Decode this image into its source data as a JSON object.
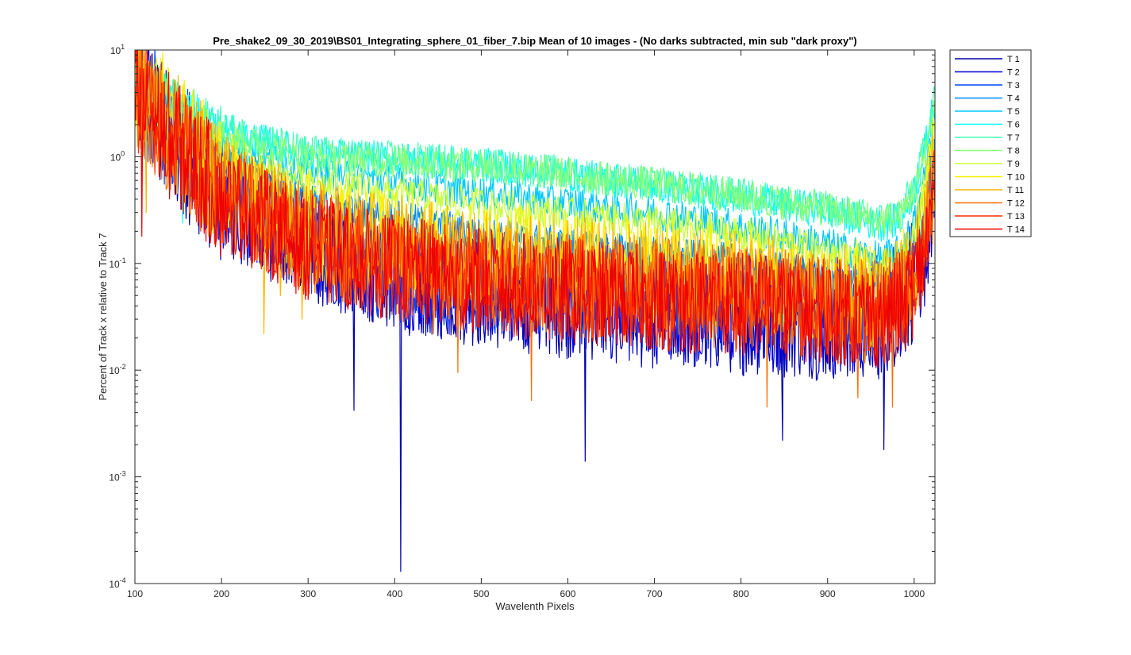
{
  "chart_data": {
    "type": "line",
    "title": "Pre_shake2_09_30_2019\\BS01_Integrating_sphere_01_fiber_7.bip  Mean of 10 images - (No darks subtracted, min sub \"dark proxy\")",
    "xlabel": "Wavelenth Pixels",
    "ylabel": "Percent of Track x relative to Track 7",
    "xlim": [
      100,
      1024
    ],
    "ylim": [
      0.0001,
      10
    ],
    "yscale": "log",
    "xticks": [
      100,
      200,
      300,
      400,
      500,
      600,
      700,
      800,
      900,
      1000
    ],
    "yticks": [
      {
        "value": 0.0001,
        "base": "10",
        "exp": "-4"
      },
      {
        "value": 0.001,
        "base": "10",
        "exp": "-3"
      },
      {
        "value": 0.01,
        "base": "10",
        "exp": "-2"
      },
      {
        "value": 0.1,
        "base": "10",
        "exp": "-1"
      },
      {
        "value": 1,
        "base": "10",
        "exp": "0"
      },
      {
        "value": 10,
        "base": "10",
        "exp": "1"
      }
    ],
    "grid": false,
    "legend_position": "outside-right",
    "series": [
      {
        "name": "T 1",
        "color": "#0000AA",
        "points": [
          [
            100,
            4.5
          ],
          [
            150,
            1.2
          ],
          [
            200,
            0.4
          ],
          [
            300,
            0.13
          ],
          [
            400,
            0.07
          ],
          [
            500,
            0.05
          ],
          [
            600,
            0.04
          ],
          [
            700,
            0.032
          ],
          [
            800,
            0.028
          ],
          [
            900,
            0.025
          ],
          [
            960,
            0.025
          ],
          [
            990,
            0.04
          ],
          [
            1010,
            0.09
          ],
          [
            1024,
            0.4
          ]
        ],
        "spikes": [
          [
            353,
            0.0042
          ],
          [
            407,
            0.00013
          ],
          [
            620,
            0.0014
          ],
          [
            848,
            0.0022
          ],
          [
            965,
            0.0018
          ]
        ]
      },
      {
        "name": "T 2",
        "color": "#0000DD",
        "points": [
          [
            100,
            4.5
          ],
          [
            150,
            1.3
          ],
          [
            200,
            0.42
          ],
          [
            300,
            0.14
          ],
          [
            400,
            0.075
          ],
          [
            500,
            0.055
          ],
          [
            600,
            0.045
          ],
          [
            700,
            0.036
          ],
          [
            800,
            0.031
          ],
          [
            900,
            0.028
          ],
          [
            960,
            0.028
          ],
          [
            990,
            0.045
          ],
          [
            1010,
            0.1
          ],
          [
            1024,
            0.45
          ]
        ],
        "spikes": []
      },
      {
        "name": "T 3",
        "color": "#0047FF",
        "points": [
          [
            100,
            5
          ],
          [
            150,
            1.4
          ],
          [
            200,
            0.5
          ],
          [
            300,
            0.16
          ],
          [
            400,
            0.09
          ],
          [
            500,
            0.07
          ],
          [
            600,
            0.06
          ],
          [
            700,
            0.05
          ],
          [
            800,
            0.045
          ],
          [
            900,
            0.04
          ],
          [
            960,
            0.04
          ],
          [
            990,
            0.06
          ],
          [
            1010,
            0.15
          ],
          [
            1024,
            0.8
          ]
        ],
        "spikes": []
      },
      {
        "name": "T 4",
        "color": "#008AFF",
        "points": [
          [
            100,
            5
          ],
          [
            150,
            2.4
          ],
          [
            200,
            1.0
          ],
          [
            300,
            0.38
          ],
          [
            400,
            0.27
          ],
          [
            500,
            0.19
          ],
          [
            600,
            0.15
          ],
          [
            700,
            0.125
          ],
          [
            800,
            0.105
          ],
          [
            900,
            0.075
          ],
          [
            960,
            0.058
          ],
          [
            985,
            0.07
          ],
          [
            1005,
            0.15
          ],
          [
            1024,
            1.3
          ]
        ],
        "spikes": []
      },
      {
        "name": "T 5",
        "color": "#00C8FF",
        "points": [
          [
            100,
            6
          ],
          [
            150,
            2.8
          ],
          [
            200,
            1.3
          ],
          [
            300,
            0.75
          ],
          [
            400,
            0.58
          ],
          [
            500,
            0.46
          ],
          [
            600,
            0.37
          ],
          [
            700,
            0.3
          ],
          [
            800,
            0.22
          ],
          [
            900,
            0.15
          ],
          [
            960,
            0.11
          ],
          [
            985,
            0.13
          ],
          [
            1005,
            0.3
          ],
          [
            1024,
            2.5
          ]
        ],
        "spikes": []
      },
      {
        "name": "T 6",
        "color": "#00FFFF",
        "points": [
          [
            100,
            6.5
          ],
          [
            150,
            3.2
          ],
          [
            200,
            1.8
          ],
          [
            300,
            1.05
          ],
          [
            400,
            0.95
          ],
          [
            500,
            0.84
          ],
          [
            600,
            0.68
          ],
          [
            700,
            0.54
          ],
          [
            800,
            0.42
          ],
          [
            900,
            0.31
          ],
          [
            960,
            0.23
          ],
          [
            985,
            0.26
          ],
          [
            1005,
            0.6
          ],
          [
            1024,
            3.5
          ]
        ],
        "spikes": [
          [
            155,
            0.24
          ]
        ]
      },
      {
        "name": "T 7",
        "color": "#45FFB8",
        "points": [
          [
            100,
            7
          ],
          [
            150,
            3.4
          ],
          [
            200,
            1.9
          ],
          [
            300,
            1.1
          ],
          [
            400,
            0.97
          ],
          [
            500,
            0.86
          ],
          [
            600,
            0.7
          ],
          [
            700,
            0.56
          ],
          [
            800,
            0.44
          ],
          [
            900,
            0.33
          ],
          [
            960,
            0.26
          ],
          [
            985,
            0.3
          ],
          [
            1005,
            0.7
          ],
          [
            1024,
            4.2
          ]
        ],
        "spikes": []
      },
      {
        "name": "T 8",
        "color": "#8AFF75",
        "points": [
          [
            100,
            6.5
          ],
          [
            150,
            3.0
          ],
          [
            200,
            1.6
          ],
          [
            300,
            0.95
          ],
          [
            400,
            0.9
          ],
          [
            500,
            0.82
          ],
          [
            600,
            0.68
          ],
          [
            700,
            0.55
          ],
          [
            800,
            0.43
          ],
          [
            900,
            0.32
          ],
          [
            960,
            0.25
          ],
          [
            985,
            0.28
          ],
          [
            1005,
            0.6
          ],
          [
            1024,
            3.0
          ]
        ],
        "spikes": []
      },
      {
        "name": "T 9",
        "color": "#C8FF37",
        "points": [
          [
            100,
            5.5
          ],
          [
            150,
            2.2
          ],
          [
            200,
            0.95
          ],
          [
            300,
            0.55
          ],
          [
            400,
            0.45
          ],
          [
            500,
            0.36
          ],
          [
            600,
            0.29
          ],
          [
            700,
            0.24
          ],
          [
            800,
            0.19
          ],
          [
            900,
            0.13
          ],
          [
            960,
            0.09
          ],
          [
            985,
            0.11
          ],
          [
            1005,
            0.25
          ],
          [
            1024,
            2.0
          ]
        ],
        "spikes": []
      },
      {
        "name": "T 10",
        "color": "#FFEF00",
        "points": [
          [
            100,
            5
          ],
          [
            150,
            1.6
          ],
          [
            200,
            0.6
          ],
          [
            300,
            0.22
          ],
          [
            400,
            0.15
          ],
          [
            500,
            0.12
          ],
          [
            600,
            0.1
          ],
          [
            700,
            0.085
          ],
          [
            800,
            0.075
          ],
          [
            900,
            0.06
          ],
          [
            960,
            0.05
          ],
          [
            990,
            0.07
          ],
          [
            1010,
            0.2
          ],
          [
            1024,
            1.0
          ]
        ],
        "spikes": []
      },
      {
        "name": "T 11",
        "color": "#FFB400",
        "points": [
          [
            100,
            5
          ],
          [
            150,
            1.5
          ],
          [
            200,
            0.55
          ],
          [
            300,
            0.2
          ],
          [
            400,
            0.14
          ],
          [
            500,
            0.11
          ],
          [
            600,
            0.09
          ],
          [
            700,
            0.075
          ],
          [
            800,
            0.065
          ],
          [
            900,
            0.05
          ],
          [
            960,
            0.045
          ],
          [
            990,
            0.06
          ],
          [
            1010,
            0.15
          ],
          [
            1024,
            0.8
          ]
        ],
        "spikes": [
          [
            113,
            0.3
          ],
          [
            185,
            0.18
          ],
          [
            235,
            0.09
          ],
          [
            249,
            0.022
          ],
          [
            268,
            0.05
          ],
          [
            293,
            0.03
          ]
        ]
      },
      {
        "name": "T 12",
        "color": "#FF7000",
        "points": [
          [
            100,
            4.5
          ],
          [
            150,
            1.4
          ],
          [
            200,
            0.5
          ],
          [
            300,
            0.17
          ],
          [
            400,
            0.1
          ],
          [
            500,
            0.08
          ],
          [
            600,
            0.065
          ],
          [
            700,
            0.055
          ],
          [
            800,
            0.048
          ],
          [
            900,
            0.04
          ],
          [
            960,
            0.035
          ],
          [
            990,
            0.05
          ],
          [
            1010,
            0.12
          ],
          [
            1024,
            0.6
          ]
        ],
        "spikes": [
          [
            445,
            0.022
          ],
          [
            473,
            0.0095
          ],
          [
            558,
            0.0052
          ],
          [
            830,
            0.0045
          ],
          [
            935,
            0.0055
          ],
          [
            975,
            0.0045
          ]
        ]
      },
      {
        "name": "T 13",
        "color": "#FF2D00",
        "points": [
          [
            100,
            4.2
          ],
          [
            150,
            1.3
          ],
          [
            200,
            0.45
          ],
          [
            300,
            0.15
          ],
          [
            400,
            0.09
          ],
          [
            500,
            0.07
          ],
          [
            600,
            0.055
          ],
          [
            700,
            0.047
          ],
          [
            800,
            0.042
          ],
          [
            900,
            0.037
          ],
          [
            960,
            0.033
          ],
          [
            990,
            0.045
          ],
          [
            1010,
            0.1
          ],
          [
            1024,
            0.5
          ]
        ],
        "spikes": []
      },
      {
        "name": "T 14",
        "color": "#EE0000",
        "points": [
          [
            100,
            3.8
          ],
          [
            150,
            1.25
          ],
          [
            200,
            0.42
          ],
          [
            300,
            0.14
          ],
          [
            400,
            0.09
          ],
          [
            500,
            0.068
          ],
          [
            600,
            0.055
          ],
          [
            700,
            0.047
          ],
          [
            800,
            0.042
          ],
          [
            900,
            0.036
          ],
          [
            960,
            0.032
          ],
          [
            990,
            0.045
          ],
          [
            1010,
            0.1
          ],
          [
            1024,
            0.45
          ]
        ],
        "spikes": [
          [
            108,
            0.18
          ]
        ]
      }
    ]
  }
}
